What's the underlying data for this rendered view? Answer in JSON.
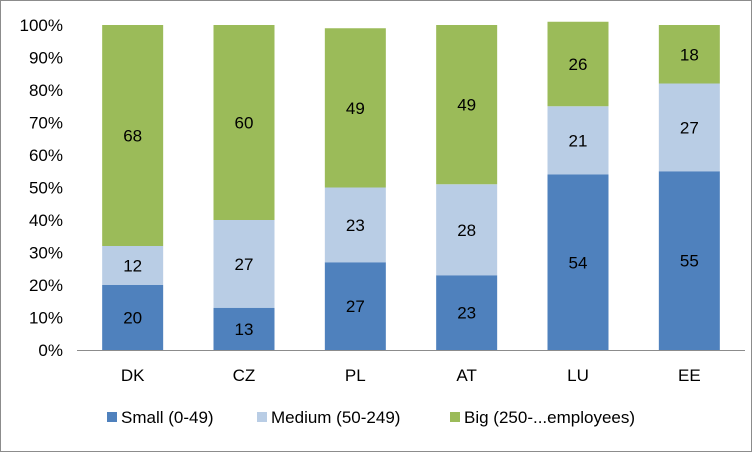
{
  "chart_data": {
    "type": "bar",
    "stacked": true,
    "percent": true,
    "categories": [
      "DK",
      "CZ",
      "PL",
      "AT",
      "LU",
      "EE"
    ],
    "series": [
      {
        "name": "Small (0-49)",
        "color": "#4F81BD",
        "values": [
          20,
          13,
          27,
          23,
          54,
          55
        ]
      },
      {
        "name": "Medium (50-249)",
        "color": "#B9CDE5",
        "values": [
          12,
          27,
          23,
          28,
          21,
          27
        ]
      },
      {
        "name": "Big (250-...employees)",
        "color": "#9BBB59",
        "values": [
          68,
          60,
          49,
          49,
          26,
          18
        ]
      }
    ],
    "y_ticks": [
      "0%",
      "10%",
      "20%",
      "30%",
      "40%",
      "50%",
      "60%",
      "70%",
      "80%",
      "90%",
      "100%"
    ],
    "ylim": [
      0,
      100
    ],
    "grid": false,
    "legend_position": "bottom"
  }
}
